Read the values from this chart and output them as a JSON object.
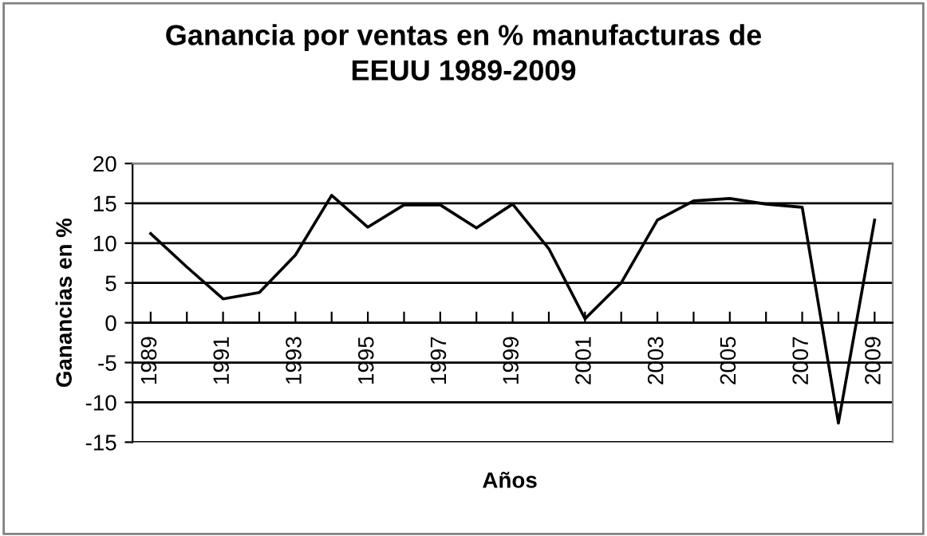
{
  "chart_data": {
    "type": "line",
    "title": "Ganancia por ventas en % manufacturas de\nEEUU 1989-2009",
    "xlabel": "Años",
    "ylabel": "Ganancias en %",
    "categories": [
      "1989",
      null,
      "1991",
      null,
      "1993",
      null,
      "1995",
      null,
      "1997",
      null,
      "1999",
      null,
      "2001",
      null,
      "2003",
      null,
      "2005",
      null,
      "2007",
      null,
      "2009"
    ],
    "series": [
      {
        "color": "#000000",
        "values": [
          11.2,
          7,
          3,
          3.8,
          8.5,
          16,
          12,
          14.8,
          14.8,
          11.9,
          14.9,
          9.3,
          0.5,
          5,
          12.9,
          15.3,
          15.6,
          14.9,
          14.5,
          -12.6,
          12.9
        ]
      }
    ],
    "ylim": [
      -15,
      20
    ],
    "yticks": [
      -15,
      -10,
      -5,
      0,
      5,
      10,
      15,
      20
    ],
    "grid": "y",
    "legend": false,
    "marker": "none",
    "line_style": "solid"
  }
}
